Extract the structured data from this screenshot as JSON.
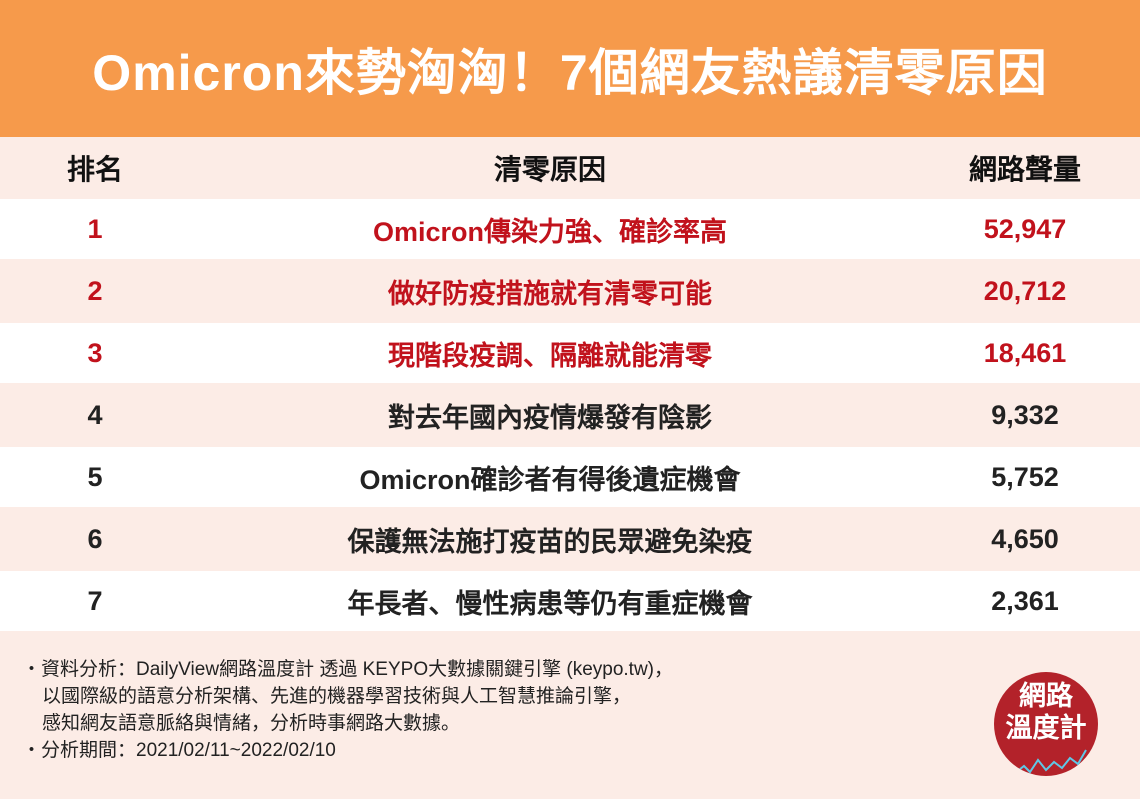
{
  "title": "Omicron來勢洶洶！7個網友熱議清零原因",
  "headers": {
    "rank": "排名",
    "reason": "清零原因",
    "volume": "網路聲量"
  },
  "rows": [
    {
      "rank": "1",
      "reason": "Omicron傳染力強、確診率高",
      "volume": "52,947"
    },
    {
      "rank": "2",
      "reason": "做好防疫措施就有清零可能",
      "volume": "20,712"
    },
    {
      "rank": "3",
      "reason": "現階段疫調、隔離就能清零",
      "volume": "18,461"
    },
    {
      "rank": "4",
      "reason": "對去年國內疫情爆發有陰影",
      "volume": "9,332"
    },
    {
      "rank": "5",
      "reason": "Omicron確診者有得後遺症機會",
      "volume": "5,752"
    },
    {
      "rank": "6",
      "reason": "保護無法施打疫苗的民眾避免染疫",
      "volume": "4,650"
    },
    {
      "rank": "7",
      "reason": "年長者、慢性病患等仍有重症機會",
      "volume": "2,361"
    }
  ],
  "footer": {
    "line1": "・資料分析：DailyView網路溫度計 透過 KEYPO大數據關鍵引擎 (keypo.tw)，",
    "line2": "以國際級的語意分析架構、先進的機器學習技術與人工智慧推論引擎，",
    "line3": "感知網友語意脈絡與情緒，分析時事網路大數據。",
    "line4": "・分析期間：2021/02/11~2022/02/10"
  },
  "logo": {
    "line1": "網路",
    "line2": "溫度計"
  },
  "colors": {
    "banner": "#f69a4b",
    "highlight": "#c1121c",
    "background": "#fcece6",
    "logo": "#b3222a"
  }
}
